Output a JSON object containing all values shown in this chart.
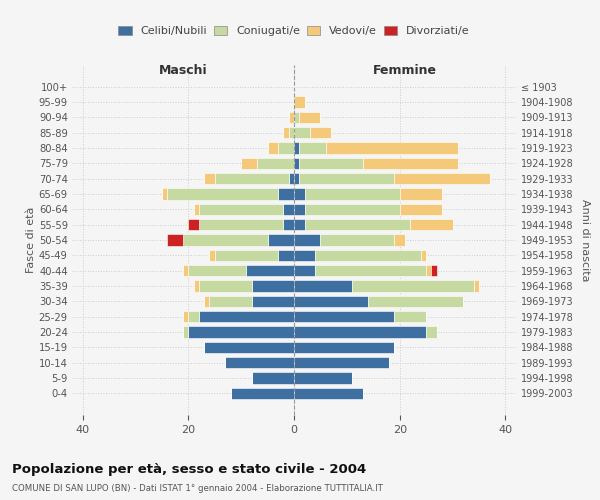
{
  "age_groups": [
    "0-4",
    "5-9",
    "10-14",
    "15-19",
    "20-24",
    "25-29",
    "30-34",
    "35-39",
    "40-44",
    "45-49",
    "50-54",
    "55-59",
    "60-64",
    "65-69",
    "70-74",
    "75-79",
    "80-84",
    "85-89",
    "90-94",
    "95-99",
    "100+"
  ],
  "birth_years": [
    "1999-2003",
    "1994-1998",
    "1989-1993",
    "1984-1988",
    "1979-1983",
    "1974-1978",
    "1969-1973",
    "1964-1968",
    "1959-1963",
    "1954-1958",
    "1949-1953",
    "1944-1948",
    "1939-1943",
    "1934-1938",
    "1929-1933",
    "1924-1928",
    "1919-1923",
    "1914-1918",
    "1909-1913",
    "1904-1908",
    "≤ 1903"
  ],
  "male_celibi": [
    12,
    8,
    13,
    17,
    20,
    18,
    8,
    8,
    9,
    3,
    5,
    2,
    2,
    3,
    1,
    0,
    0,
    0,
    0,
    0,
    0
  ],
  "male_coniugati": [
    0,
    0,
    0,
    0,
    1,
    2,
    8,
    10,
    11,
    12,
    16,
    16,
    16,
    21,
    14,
    7,
    3,
    1,
    0,
    0,
    0
  ],
  "male_vedovi": [
    0,
    0,
    0,
    0,
    0,
    1,
    1,
    1,
    1,
    1,
    0,
    0,
    1,
    1,
    2,
    3,
    2,
    1,
    1,
    0,
    0
  ],
  "male_divorziati": [
    0,
    0,
    0,
    0,
    0,
    0,
    0,
    0,
    0,
    0,
    3,
    2,
    0,
    0,
    0,
    0,
    0,
    0,
    0,
    0,
    0
  ],
  "female_celibi": [
    13,
    11,
    18,
    19,
    25,
    19,
    14,
    11,
    4,
    4,
    5,
    2,
    2,
    2,
    1,
    1,
    1,
    0,
    0,
    0,
    0
  ],
  "female_coniugati": [
    0,
    0,
    0,
    0,
    2,
    6,
    18,
    23,
    21,
    20,
    14,
    20,
    18,
    18,
    18,
    12,
    5,
    3,
    1,
    0,
    0
  ],
  "female_vedovi": [
    0,
    0,
    0,
    0,
    0,
    0,
    0,
    1,
    1,
    1,
    2,
    8,
    8,
    8,
    18,
    18,
    25,
    4,
    4,
    2,
    0
  ],
  "female_divorziati": [
    0,
    0,
    0,
    0,
    0,
    0,
    0,
    0,
    1,
    0,
    0,
    0,
    0,
    0,
    0,
    0,
    0,
    0,
    0,
    0,
    0
  ],
  "color_celibi": "#3d6fa0",
  "color_coniugati": "#c5d9a0",
  "color_vedovi": "#f5c97a",
  "color_divorziati": "#cc2222",
  "title": "Popolazione per età, sesso e stato civile - 2004",
  "subtitle": "COMUNE DI SAN LUPO (BN) - Dati ISTAT 1° gennaio 2004 - Elaborazione TUTTITALIA.IT",
  "xlabel_left": "Maschi",
  "xlabel_right": "Femmine",
  "ylabel_left": "Fasce di età",
  "ylabel_right": "Anni di nascita",
  "xlim": 42,
  "background_color": "#f5f5f5"
}
